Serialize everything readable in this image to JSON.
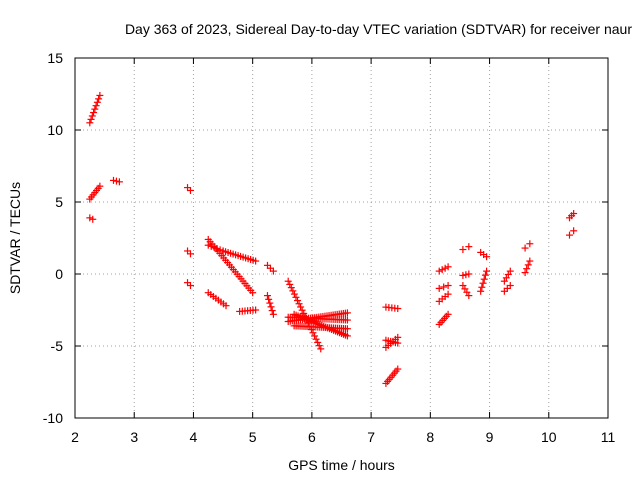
{
  "chart_data": {
    "type": "scatter",
    "title": "Day 363 of 2023, Sidereal Day-to-day VTEC variation (SDTVAR) for receiver naur",
    "xlabel": "GPS time / hours",
    "ylabel": "SDTVAR / TECUs",
    "xlim": [
      2,
      11
    ],
    "ylim": [
      -10,
      15
    ],
    "xticks": [
      2,
      3,
      4,
      5,
      6,
      7,
      8,
      9,
      10,
      11
    ],
    "yticks": [
      -10,
      -5,
      0,
      5,
      10,
      15
    ],
    "grid": true,
    "marker": "plus",
    "color": "#ff0000",
    "segments": [
      {
        "x0": 2.25,
        "y0": 10.5,
        "x1": 2.42,
        "y1": 12.4,
        "n": 9
      },
      {
        "x0": 2.25,
        "y0": 5.2,
        "x1": 2.42,
        "y1": 6.1,
        "n": 7
      },
      {
        "x0": 2.25,
        "y0": 3.9,
        "x1": 2.3,
        "y1": 3.8,
        "n": 2
      },
      {
        "x0": 2.65,
        "y0": 6.5,
        "x1": 2.75,
        "y1": 6.4,
        "n": 3
      },
      {
        "x0": 3.9,
        "y0": 6.0,
        "x1": 3.95,
        "y1": 5.8,
        "n": 2
      },
      {
        "x0": 3.9,
        "y0": 1.6,
        "x1": 3.95,
        "y1": 1.4,
        "n": 2
      },
      {
        "x0": 3.9,
        "y0": -0.6,
        "x1": 3.95,
        "y1": -0.8,
        "n": 2
      },
      {
        "x0": 4.25,
        "y0": 2.4,
        "x1": 5.0,
        "y1": -1.3,
        "n": 24
      },
      {
        "x0": 4.25,
        "y0": 2.0,
        "x1": 4.5,
        "y1": 1.6,
        "n": 6
      },
      {
        "x0": 4.5,
        "y0": 1.6,
        "x1": 5.05,
        "y1": 0.9,
        "n": 14
      },
      {
        "x0": 4.25,
        "y0": -1.3,
        "x1": 4.55,
        "y1": -2.2,
        "n": 8
      },
      {
        "x0": 4.78,
        "y0": -2.6,
        "x1": 5.05,
        "y1": -2.5,
        "n": 7
      },
      {
        "x0": 5.25,
        "y0": 0.6,
        "x1": 5.35,
        "y1": 0.2,
        "n": 3
      },
      {
        "x0": 5.25,
        "y0": -1.5,
        "x1": 5.35,
        "y1": -2.8,
        "n": 6
      },
      {
        "x0": 5.6,
        "y0": -0.5,
        "x1": 6.15,
        "y1": -5.2,
        "n": 22
      },
      {
        "x0": 5.6,
        "y0": -3.0,
        "x1": 6.6,
        "y1": -3.2,
        "n": 30
      },
      {
        "x0": 5.6,
        "y0": -3.3,
        "x1": 6.6,
        "y1": -2.7,
        "n": 30
      },
      {
        "x0": 5.7,
        "y0": -2.8,
        "x1": 6.6,
        "y1": -4.3,
        "n": 28
      },
      {
        "x0": 5.7,
        "y0": -3.6,
        "x1": 6.6,
        "y1": -3.8,
        "n": 28
      },
      {
        "x0": 7.25,
        "y0": -2.3,
        "x1": 7.45,
        "y1": -2.4,
        "n": 5
      },
      {
        "x0": 7.25,
        "y0": -4.6,
        "x1": 7.45,
        "y1": -4.8,
        "n": 6
      },
      {
        "x0": 7.25,
        "y0": -5.1,
        "x1": 7.45,
        "y1": -4.4,
        "n": 6
      },
      {
        "x0": 7.25,
        "y0": -7.6,
        "x1": 7.45,
        "y1": -6.6,
        "n": 8
      },
      {
        "x0": 8.15,
        "y0": -1.9,
        "x1": 8.3,
        "y1": -1.4,
        "n": 4
      },
      {
        "x0": 8.15,
        "y0": 0.2,
        "x1": 8.3,
        "y1": 0.5,
        "n": 4
      },
      {
        "x0": 8.15,
        "y0": -3.5,
        "x1": 8.3,
        "y1": -2.8,
        "n": 6
      },
      {
        "x0": 8.15,
        "y0": -1.0,
        "x1": 8.3,
        "y1": -0.8,
        "n": 3
      },
      {
        "x0": 8.55,
        "y0": 1.7,
        "x1": 8.65,
        "y1": 1.9,
        "n": 2
      },
      {
        "x0": 8.55,
        "y0": -0.8,
        "x1": 8.65,
        "y1": -1.5,
        "n": 4
      },
      {
        "x0": 8.55,
        "y0": -0.1,
        "x1": 8.65,
        "y1": 0.0,
        "n": 3
      },
      {
        "x0": 8.85,
        "y0": 1.5,
        "x1": 8.95,
        "y1": 1.2,
        "n": 3
      },
      {
        "x0": 8.85,
        "y0": -1.2,
        "x1": 8.95,
        "y1": 0.2,
        "n": 6
      },
      {
        "x0": 9.25,
        "y0": -0.5,
        "x1": 9.35,
        "y1": 0.2,
        "n": 4
      },
      {
        "x0": 9.25,
        "y0": -1.2,
        "x1": 9.35,
        "y1": -0.8,
        "n": 3
      },
      {
        "x0": 9.6,
        "y0": 1.8,
        "x1": 9.68,
        "y1": 2.1,
        "n": 2
      },
      {
        "x0": 9.6,
        "y0": 0.1,
        "x1": 9.68,
        "y1": 0.9,
        "n": 4
      },
      {
        "x0": 10.35,
        "y0": 3.9,
        "x1": 10.42,
        "y1": 4.2,
        "n": 3
      },
      {
        "x0": 10.35,
        "y0": 2.7,
        "x1": 10.42,
        "y1": 3.0,
        "n": 2
      }
    ]
  }
}
